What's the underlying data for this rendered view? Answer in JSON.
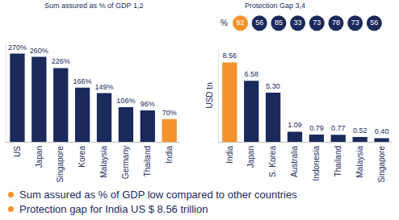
{
  "chart_data": [
    {
      "type": "bar",
      "title": "Sum assured as % of GDP 1,2",
      "categories": [
        "US",
        "Japan",
        "Singapore",
        "Korea",
        "Malaysia",
        "Germany",
        "Thailand",
        "India"
      ],
      "values": [
        270,
        260,
        226,
        166,
        149,
        106,
        96,
        70
      ],
      "value_labels": [
        "270%",
        "260%",
        "226%",
        "166%",
        "149%",
        "106%",
        "96%",
        "70%"
      ],
      "colors": [
        "#1b2a5c",
        "#1b2a5c",
        "#1b2a5c",
        "#1b2a5c",
        "#1b2a5c",
        "#1b2a5c",
        "#1b2a5c",
        "#f5922b"
      ],
      "ylim": [
        0,
        300
      ],
      "grid": false,
      "data_labels": true,
      "tick_labels": "x"
    },
    {
      "type": "bar",
      "title": "Protection Gap 3,4",
      "y_label": "USD tn",
      "categories": [
        "India",
        "Japan",
        "S. Korea",
        "Australia",
        "Indonesia",
        "Thailand",
        "Malaysia",
        "Singapore"
      ],
      "values": [
        8.56,
        6.58,
        5.3,
        1.09,
        0.79,
        0.77,
        0.52,
        0.4
      ],
      "value_labels": [
        "8.56",
        "6.58",
        "5.30",
        "1.09",
        "0.79",
        "0.77",
        "0.52",
        "0.40"
      ],
      "colors": [
        "#f5922b",
        "#1b2a5c",
        "#1b2a5c",
        "#1b2a5c",
        "#1b2a5c",
        "#1b2a5c",
        "#1b2a5c",
        "#1b2a5c"
      ],
      "ylim": [
        0,
        10
      ],
      "grid": false,
      "data_labels": true,
      "tick_labels": "x",
      "gap_percent_label": "%",
      "gap_percent": [
        92,
        56,
        85,
        33,
        73,
        78,
        73,
        56
      ]
    }
  ],
  "notes": [
    "Sum assured as % of GDP low compared to other countries",
    "Protection gap  for India US $ 8.56 trillion"
  ]
}
